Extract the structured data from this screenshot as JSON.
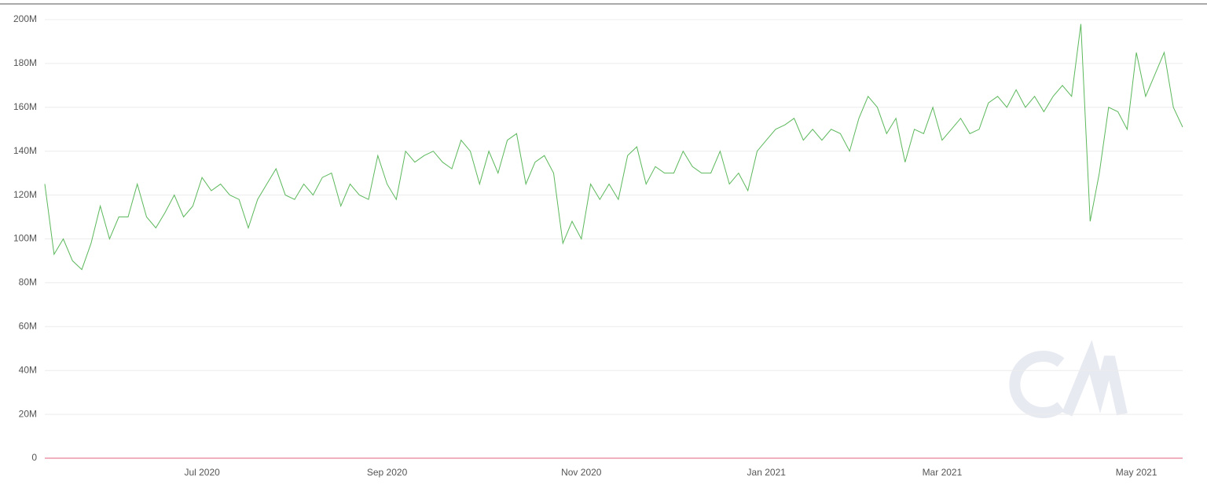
{
  "chart_data": {
    "type": "line",
    "categories": [
      null,
      null,
      null,
      null,
      null,
      null,
      null,
      null,
      null,
      null,
      null,
      null,
      null,
      null,
      null,
      null,
      null,
      "Jul 2020",
      null,
      null,
      null,
      null,
      null,
      null,
      null,
      null,
      null,
      null,
      null,
      null,
      null,
      null,
      null,
      null,
      null,
      null,
      null,
      "Sep 2020",
      null,
      null,
      null,
      null,
      null,
      null,
      null,
      null,
      null,
      null,
      null,
      null,
      null,
      null,
      null,
      null,
      null,
      null,
      null,
      null,
      "Nov 2020",
      null,
      null,
      null,
      null,
      null,
      null,
      null,
      null,
      null,
      null,
      null,
      null,
      null,
      null,
      null,
      null,
      null,
      null,
      null,
      "Jan 2021",
      null,
      null,
      null,
      null,
      null,
      null,
      null,
      null,
      null,
      null,
      null,
      null,
      null,
      null,
      null,
      null,
      null,
      null,
      "Mar 2021",
      null,
      null,
      null,
      null,
      null,
      null,
      null,
      null,
      null,
      null,
      null,
      null,
      null,
      null,
      null,
      null,
      null,
      null,
      null,
      null,
      "May 2021",
      null,
      null,
      null,
      null,
      null
    ],
    "series": [
      {
        "color": "#5cb85c",
        "values": [
          125,
          93,
          100,
          90,
          86,
          98,
          115,
          100,
          110,
          110,
          125,
          110,
          105,
          112,
          120,
          110,
          115,
          128,
          122,
          125,
          120,
          118,
          105,
          118,
          125,
          132,
          120,
          118,
          125,
          120,
          128,
          130,
          115,
          125,
          120,
          118,
          138,
          125,
          118,
          140,
          135,
          138,
          140,
          135,
          132,
          145,
          140,
          125,
          140,
          130,
          145,
          148,
          125,
          135,
          138,
          130,
          98,
          108,
          100,
          125,
          118,
          125,
          118,
          138,
          142,
          125,
          133,
          130,
          130,
          140,
          133,
          130,
          130,
          140,
          125,
          130,
          122,
          140,
          145,
          150,
          152,
          155,
          145,
          150,
          145,
          150,
          148,
          140,
          155,
          165,
          160,
          148,
          155,
          135,
          150,
          148,
          160,
          145,
          150,
          155,
          148,
          150,
          162,
          165,
          160,
          168,
          160,
          165,
          158,
          165,
          170,
          165,
          198,
          108,
          130,
          160,
          158,
          150,
          185,
          165,
          175,
          185,
          160,
          151
        ]
      },
      {
        "color": "#e0607e",
        "values": [
          0,
          0,
          0,
          0,
          0,
          0,
          0,
          0,
          0,
          0,
          0,
          0,
          0,
          0,
          0,
          0,
          0,
          0,
          0,
          0,
          0,
          0,
          0,
          0,
          0,
          0,
          0,
          0,
          0,
          0,
          0,
          0,
          0,
          0,
          0,
          0,
          0,
          0,
          0,
          0,
          0,
          0,
          0,
          0,
          0,
          0,
          0,
          0,
          0,
          0,
          0,
          0,
          0,
          0,
          0,
          0,
          0,
          0,
          0,
          0,
          0,
          0,
          0,
          0,
          0,
          0,
          0,
          0,
          0,
          0,
          0,
          0,
          0,
          0,
          0,
          0,
          0,
          0,
          0,
          0,
          0,
          0,
          0,
          0,
          0,
          0,
          0,
          0,
          0,
          0,
          0,
          0,
          0,
          0,
          0,
          0,
          0,
          0,
          0,
          0,
          0,
          0,
          0,
          0,
          0,
          0,
          0,
          0,
          0,
          0,
          0,
          0,
          0,
          0,
          0,
          0,
          0,
          0,
          0,
          0,
          0,
          0,
          0,
          0
        ]
      }
    ],
    "ylim": [
      0,
      200
    ],
    "yticks": [
      0,
      {
        "value": 20,
        "label": "20M"
      },
      {
        "value": 40,
        "label": "40M"
      },
      {
        "value": 60,
        "label": "60M"
      },
      {
        "value": 80,
        "label": "80M"
      },
      {
        "value": 100,
        "label": "100M"
      },
      {
        "value": 120,
        "label": "120M"
      },
      {
        "value": 140,
        "label": "140M"
      },
      {
        "value": 160,
        "label": "160M"
      },
      {
        "value": 180,
        "label": "180M"
      },
      {
        "value": 200,
        "label": "200M"
      }
    ],
    "grid": true
  }
}
